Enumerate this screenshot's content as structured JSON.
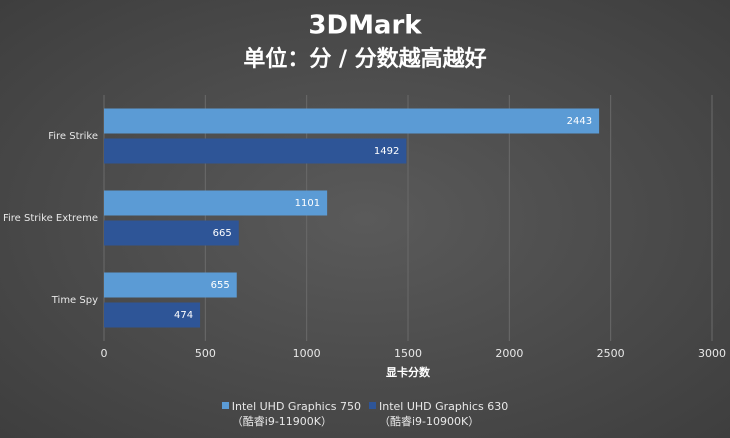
{
  "chart_data": {
    "type": "hbar",
    "title": "3DMark",
    "subtitle": "单位：分 / 分数越高越好",
    "x_label": "显卡分数",
    "categories": [
      "Fire Strike",
      "Fire Strike Extreme",
      "Time Spy"
    ],
    "series": [
      {
        "name": "Intel UHD Graphics 750\n（酷睿i9-11900K）",
        "color": "#5b9bd5",
        "values": [
          2443,
          1101,
          655
        ]
      },
      {
        "name": "Intel UHD Graphics 630\n（酷睿i9-10900K）",
        "color": "#2e5597",
        "values": [
          1492,
          665,
          474
        ]
      }
    ],
    "xlim": [
      0,
      3000
    ],
    "xticks": [
      0,
      500,
      1000,
      1500,
      2000,
      2500,
      3000
    ],
    "grid": true
  }
}
